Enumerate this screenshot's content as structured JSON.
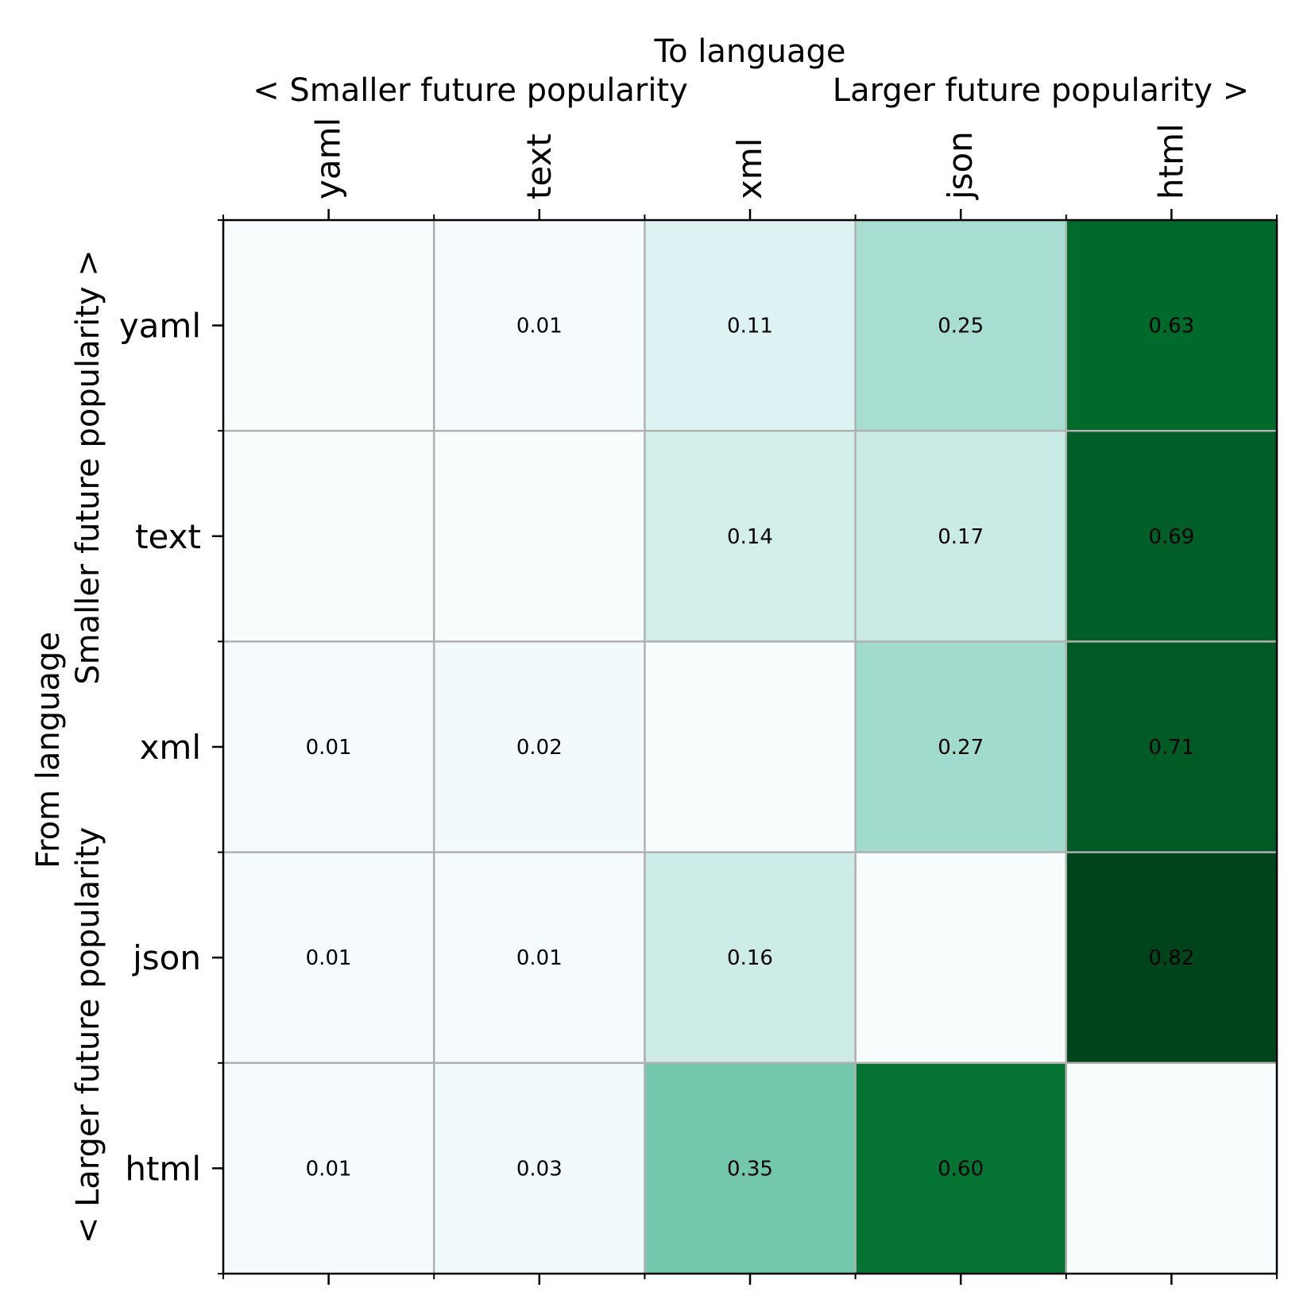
{
  "chart_data": {
    "type": "heatmap",
    "x_title": "To language",
    "x_subtitle_left": "< Smaller future popularity",
    "x_subtitle_right": "Larger future popularity >",
    "y_title": "From language",
    "y_subtitle_top": "Smaller future popularity >",
    "y_subtitle_bottom": "< Larger future popularity",
    "x_categories": [
      "yaml",
      "text",
      "xml",
      "json",
      "html"
    ],
    "y_categories": [
      "yaml",
      "text",
      "xml",
      "json",
      "html"
    ],
    "values": [
      [
        0.0,
        0.01,
        0.11,
        0.25,
        0.63
      ],
      [
        0.0,
        0.0,
        0.14,
        0.17,
        0.69
      ],
      [
        0.01,
        0.02,
        0.0,
        0.27,
        0.71
      ],
      [
        0.01,
        0.01,
        0.16,
        0.0,
        0.82
      ],
      [
        0.01,
        0.03,
        0.35,
        0.6,
        0.0
      ]
    ],
    "labels": [
      [
        "",
        "0.01",
        "0.11",
        "0.25",
        "0.63"
      ],
      [
        "",
        "",
        "0.14",
        "0.17",
        "0.69"
      ],
      [
        "0.01",
        "0.02",
        "",
        "0.27",
        "0.71"
      ],
      [
        "0.01",
        "0.01",
        "0.16",
        "",
        "0.82"
      ],
      [
        "0.01",
        "0.03",
        "0.35",
        "0.60",
        ""
      ]
    ],
    "colormap": "Greens-BuGn",
    "value_range": [
      0,
      0.82
    ],
    "gridlines": true,
    "x_axis_position": "top"
  }
}
